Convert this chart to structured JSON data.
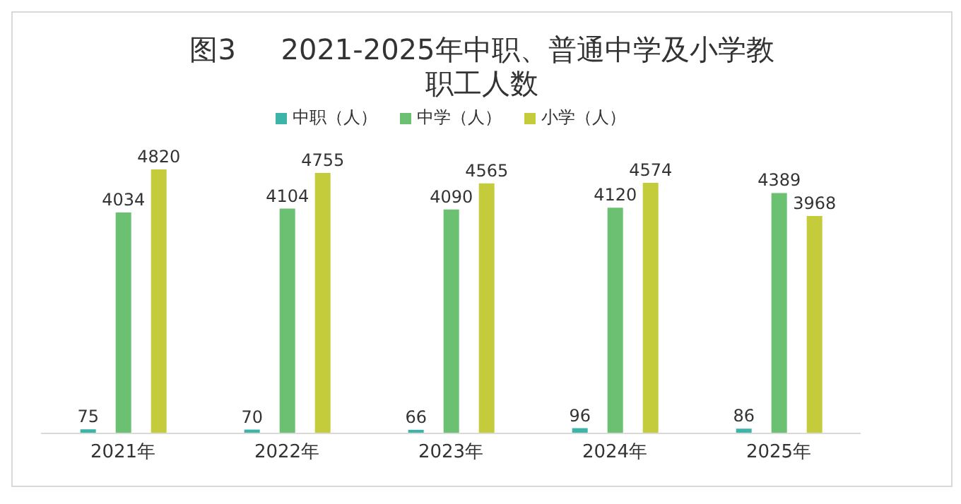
{
  "chart_data": {
    "type": "bar",
    "title": "图3     2021-2025年中职、普通中学及小学教职工人数",
    "categories": [
      "2021年",
      "2022年",
      "2023年",
      "2024年",
      "2025年"
    ],
    "series": [
      {
        "name": "中职（人）",
        "color": "#3cb4a8",
        "values": [
          75,
          70,
          66,
          96,
          86
        ]
      },
      {
        "name": "中学（人）",
        "color": "#6cc071",
        "values": [
          4034,
          4104,
          4090,
          4120,
          4389
        ]
      },
      {
        "name": "小学（人）",
        "color": "#c4cc3c",
        "values": [
          4820,
          4755,
          4565,
          4574,
          3968
        ]
      }
    ],
    "tick_labels": "x",
    "data_labels": true,
    "legend": "top",
    "grid": false
  }
}
